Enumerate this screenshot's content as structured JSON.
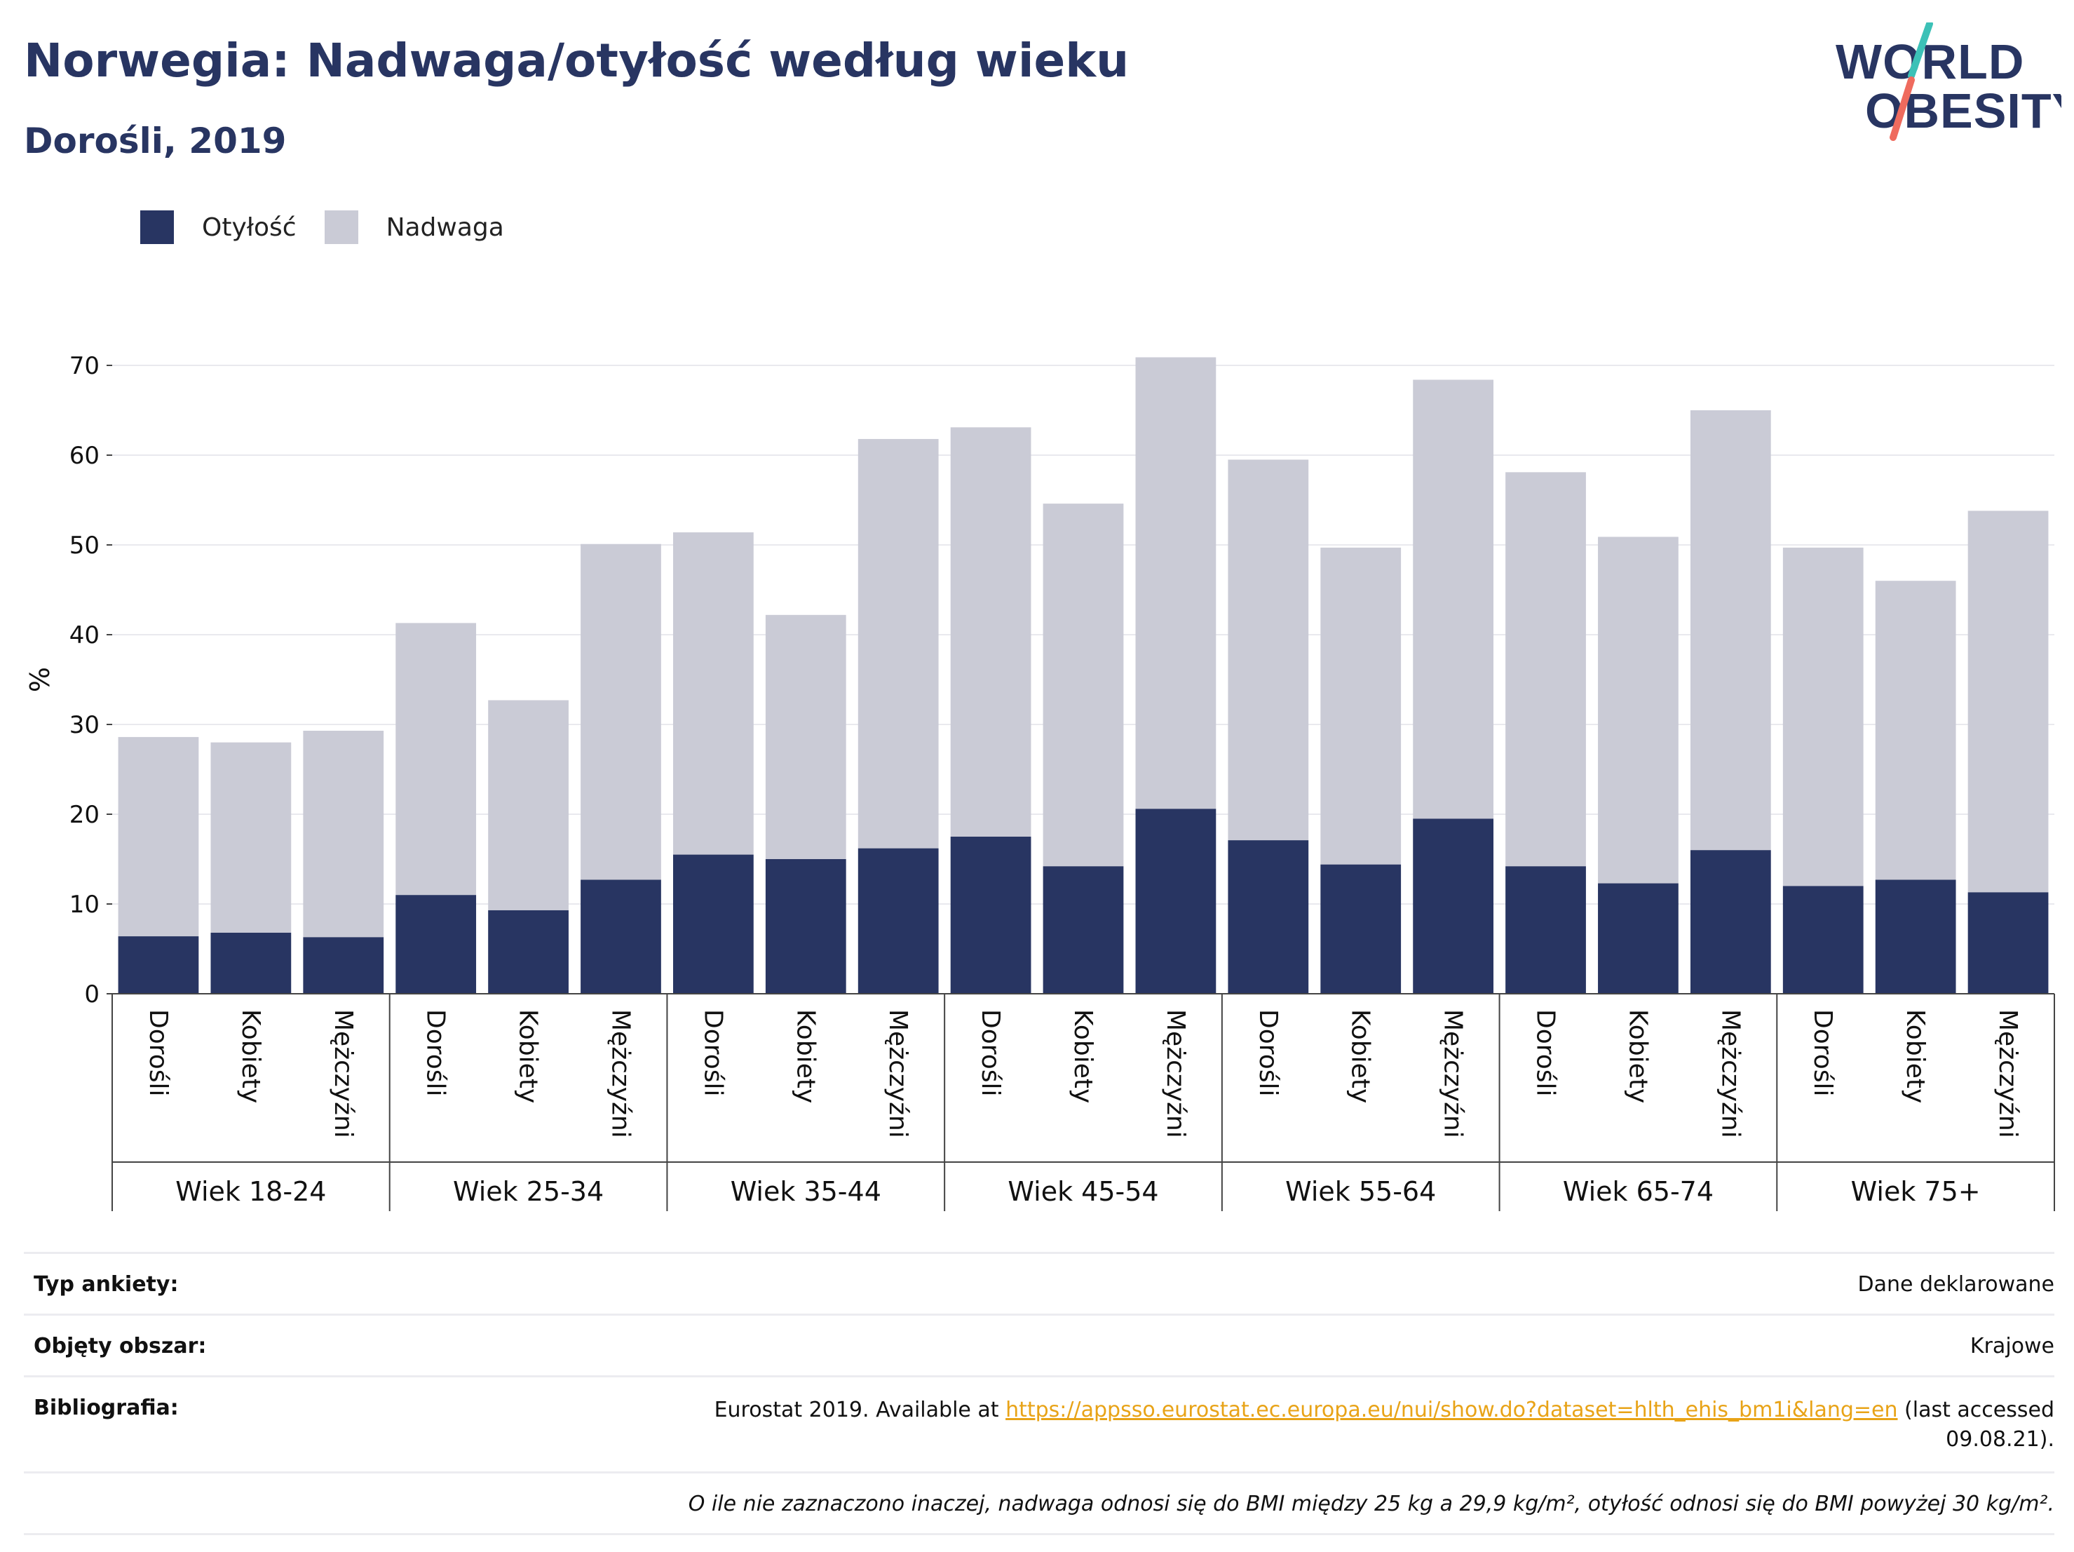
{
  "header": {
    "title": "Norwegia: Nadwaga/otyłość według wieku",
    "subtitle": "Dorośli, 2019"
  },
  "logo": {
    "line1": "WORLD",
    "line2": "OBESITY",
    "icon": "world-obesity-logo"
  },
  "legend": [
    {
      "label": "Otyłość",
      "color": "#283562"
    },
    {
      "label": "Nadwaga",
      "color": "#cacbd6"
    }
  ],
  "chart_data": {
    "type": "bar",
    "stacked": true,
    "ylabel": "%",
    "ylim": [
      0,
      72
    ],
    "yticks": [
      0,
      10,
      20,
      30,
      40,
      50,
      60,
      70
    ],
    "grid": true,
    "legend_position": "top-left",
    "groups": [
      "Wiek 18-24",
      "Wiek 25-34",
      "Wiek 35-44",
      "Wiek 45-54",
      "Wiek 55-64",
      "Wiek 65-74",
      "Wiek 75+"
    ],
    "subcategories": [
      "Dorośli",
      "Kobiety",
      "Mężczyźni"
    ],
    "series": [
      {
        "name": "Otyłość",
        "color": "#283562",
        "values": [
          6.4,
          6.8,
          6.3,
          11.0,
          9.3,
          12.7,
          15.5,
          15.0,
          16.2,
          17.5,
          14.2,
          20.6,
          17.1,
          14.4,
          19.5,
          14.2,
          12.3,
          16.0,
          12.0,
          12.7,
          11.3
        ]
      },
      {
        "name": "Nadwaga",
        "color": "#cacbd6",
        "values": [
          22.2,
          21.2,
          23.0,
          30.3,
          23.4,
          37.4,
          35.9,
          27.2,
          45.6,
          45.6,
          40.4,
          50.3,
          42.4,
          35.3,
          48.9,
          43.9,
          38.6,
          49.0,
          37.7,
          33.3,
          42.5
        ]
      }
    ]
  },
  "info": {
    "survey_type_label": "Typ ankiety:",
    "survey_type_value": "Dane deklarowane",
    "coverage_label": "Objęty obszar:",
    "coverage_value": "Krajowe",
    "bibliography_label": "Bibliografia:",
    "bibliography_prefix": "Eurostat 2019. Available at ",
    "bibliography_link": "https://appsso.eurostat.ec.europa.eu/nui/show.do?dataset=hlth_ehis_bm1i&lang=en",
    "bibliography_suffix": " (last accessed 09.08.21).",
    "note": "O ile nie zaznaczono inaczej, nadwaga odnosi się do BMI między 25 kg a 29,9 kg/m², otyłość odnosi się do BMI powyżej 30 kg/m²."
  }
}
